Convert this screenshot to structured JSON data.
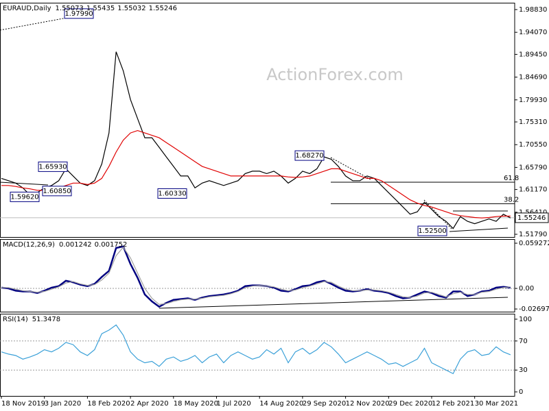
{
  "chart_data": [
    {
      "type": "line",
      "title": "EURAUD,Daily",
      "readings": [
        1.55073,
        1.55435,
        1.55032,
        1.55246
      ],
      "watermark": "ActionForex.com",
      "categories": [
        "18 Nov 2019",
        null,
        null,
        null,
        null,
        null,
        "3 Jan 2020",
        null,
        null,
        null,
        null,
        null,
        "18 Feb 2020",
        null,
        null,
        null,
        null,
        null,
        "2 Apr 2020",
        null,
        null,
        null,
        null,
        null,
        "18 May 2020",
        null,
        null,
        null,
        null,
        null,
        "1 Jul 2020",
        null,
        null,
        null,
        null,
        null,
        "14 Aug 2020",
        null,
        null,
        null,
        null,
        null,
        "29 Sep 2020",
        null,
        null,
        null,
        null,
        null,
        "12 Nov 2020",
        null,
        null,
        null,
        null,
        null,
        "29 Dec 2020",
        null,
        null,
        null,
        null,
        null,
        "12 Feb 2021",
        null,
        null,
        null,
        null,
        null,
        "30 Mar 2021",
        null,
        null,
        null,
        null,
        null
      ],
      "series": [
        {
          "color": "#000000",
          "values": [
            1.635,
            1.63,
            1.625,
            1.615,
            1.6,
            1.605,
            1.615,
            1.62,
            1.63,
            1.655,
            1.64,
            1.625,
            1.62,
            1.63,
            1.665,
            1.73,
            1.9,
            1.86,
            1.8,
            1.76,
            1.72,
            1.72,
            1.7,
            1.68,
            1.66,
            1.64,
            1.64,
            1.615,
            1.625,
            1.63,
            1.625,
            1.62,
            1.625,
            1.63,
            1.645,
            1.65,
            1.65,
            1.645,
            1.65,
            1.64,
            1.625,
            1.635,
            1.65,
            1.645,
            1.655,
            1.68,
            1.675,
            1.66,
            1.64,
            1.63,
            1.63,
            1.64,
            1.635,
            1.62,
            1.605,
            1.59,
            1.575,
            1.56,
            1.565,
            1.585,
            1.57,
            1.555,
            1.545,
            1.53,
            1.555,
            1.545,
            1.54,
            1.545,
            1.55,
            1.545,
            1.56,
            1.552
          ]
        },
        {
          "color": "#e00000",
          "values": [
            1.62,
            1.62,
            1.618,
            1.615,
            1.613,
            1.61,
            1.61,
            1.612,
            1.615,
            1.62,
            1.625,
            1.625,
            1.622,
            1.625,
            1.635,
            1.66,
            1.69,
            1.715,
            1.73,
            1.735,
            1.73,
            1.725,
            1.72,
            1.71,
            1.7,
            1.69,
            1.68,
            1.67,
            1.66,
            1.655,
            1.65,
            1.645,
            1.64,
            1.64,
            1.64,
            1.64,
            1.64,
            1.64,
            1.64,
            1.64,
            1.638,
            1.637,
            1.638,
            1.64,
            1.645,
            1.65,
            1.655,
            1.655,
            1.65,
            1.645,
            1.64,
            1.635,
            1.635,
            1.63,
            1.62,
            1.61,
            1.6,
            1.59,
            1.583,
            1.578,
            1.575,
            1.57,
            1.565,
            1.56,
            1.557,
            1.555,
            1.553,
            1.552,
            1.553,
            1.555,
            1.556,
            1.556
          ]
        }
      ],
      "ylim": [
        1.5122,
        2.0026
      ],
      "yticks": [
        {
          "value": 1.9883,
          "label": "1.98830"
        },
        {
          "value": 1.9407,
          "label": "1.94070"
        },
        {
          "value": 1.8945,
          "label": "1.89450"
        },
        {
          "value": 1.8469,
          "label": "1.84690"
        },
        {
          "value": 1.7993,
          "label": "1.79930"
        },
        {
          "value": 1.7531,
          "label": "1.75310"
        },
        {
          "value": 1.7055,
          "label": "1.70550"
        },
        {
          "value": 1.6579,
          "label": "1.65790"
        },
        {
          "value": 1.6117,
          "label": "1.61170"
        },
        {
          "value": 1.5641,
          "label": "1.56410"
        },
        {
          "value": 1.5179,
          "label": "1.51790"
        }
      ],
      "annotations": [
        {
          "value": 1.9799,
          "label": "1.97990"
        },
        {
          "value": 1.6593,
          "label": "1.65930"
        },
        {
          "value": 1.6085,
          "label": "1.60850"
        },
        {
          "value": 1.5962,
          "label": "1.59620"
        },
        {
          "value": 1.6033,
          "label": "1.60330"
        },
        {
          "value": 1.6827,
          "label": "1.68270"
        },
        {
          "value": 1.525,
          "label": "1.52500"
        }
      ],
      "levels": [
        {
          "name": "61.8",
          "value": 1.627
        },
        {
          "name": "38.2",
          "value": 1.582
        }
      ],
      "last_price": {
        "value": 1.55246,
        "label": "1.55246"
      }
    },
    {
      "type": "line",
      "title": "MACD(12,26,9)",
      "readings": [
        0.001242,
        0.001752
      ],
      "series": [
        {
          "color": "#000080",
          "values": [
            0.001,
            0,
            -0.003,
            -0.004,
            -0.004,
            -0.006,
            -0.003,
            0.001,
            0.003,
            0.01,
            0.008,
            0.005,
            0.003,
            0.006,
            0.015,
            0.023,
            0.053,
            0.055,
            0.032,
            0.014,
            -0.008,
            -0.017,
            -0.024,
            -0.019,
            -0.015,
            -0.014,
            -0.013,
            -0.015,
            -0.012,
            -0.01,
            -0.009,
            -0.008,
            -0.006,
            -0.003,
            0.003,
            0.004,
            0.004,
            0.003,
            0.001,
            -0.003,
            -0.004,
            -0.001,
            0.003,
            0.004,
            0.008,
            0.01,
            0.006,
            0.001,
            -0.003,
            -0.004,
            -0.003,
            -0.001,
            -0.003,
            -0.004,
            -0.006,
            -0.01,
            -0.013,
            -0.012,
            -0.008,
            -0.004,
            -0.006,
            -0.01,
            -0.012,
            -0.004,
            -0.004,
            -0.01,
            -0.008,
            -0.004,
            -0.003,
            0.001,
            0.002,
            0.001
          ]
        },
        {
          "color": "#a0a0a0",
          "values": [
            0.001,
            0.001,
            -0.001,
            -0.003,
            -0.004,
            -0.005,
            -0.004,
            -0.001,
            0.002,
            0.007,
            0.009,
            0.006,
            0.004,
            0.005,
            0.011,
            0.02,
            0.043,
            0.054,
            0.04,
            0.02,
            0.0,
            -0.013,
            -0.021,
            -0.02,
            -0.017,
            -0.015,
            -0.014,
            -0.014,
            -0.013,
            -0.011,
            -0.01,
            -0.009,
            -0.007,
            -0.004,
            0.001,
            0.003,
            0.004,
            0.003,
            0.002,
            -0.001,
            -0.003,
            -0.002,
            0.001,
            0.003,
            0.006,
            0.009,
            0.008,
            0.003,
            -0.001,
            -0.003,
            -0.003,
            -0.002,
            -0.002,
            -0.003,
            -0.005,
            -0.008,
            -0.011,
            -0.012,
            -0.01,
            -0.006,
            -0.005,
            -0.008,
            -0.011,
            -0.007,
            -0.005,
            -0.008,
            -0.008,
            -0.005,
            -0.004,
            -0.001,
            0.001,
            0.002
          ]
        }
      ],
      "ylim": [
        -0.0305,
        0.0647
      ],
      "yticks": [
        0.059272,
        {
          "value": 0,
          "label": "0.00"
        },
        -0.026978
      ],
      "guide_lines": [
        0
      ]
    },
    {
      "type": "line",
      "title": "RSI(14)",
      "readings": [
        51.3478
      ],
      "series": [
        {
          "color": "#3aa0d8",
          "values": [
            55,
            52,
            50,
            45,
            48,
            52,
            58,
            55,
            60,
            68,
            65,
            55,
            50,
            58,
            80,
            85,
            92,
            78,
            55,
            45,
            40,
            42,
            35,
            45,
            48,
            42,
            45,
            50,
            40,
            48,
            52,
            40,
            50,
            55,
            50,
            45,
            48,
            58,
            52,
            60,
            40,
            55,
            60,
            52,
            58,
            68,
            62,
            52,
            40,
            45,
            50,
            55,
            50,
            45,
            38,
            40,
            35,
            40,
            45,
            60,
            40,
            35,
            30,
            25,
            45,
            55,
            58,
            50,
            52,
            62,
            55,
            51
          ]
        }
      ],
      "ylim": [
        -5.6,
        107.5
      ],
      "yticks": [
        100,
        70,
        30,
        0
      ],
      "guide_lines": [
        70,
        30
      ]
    }
  ]
}
